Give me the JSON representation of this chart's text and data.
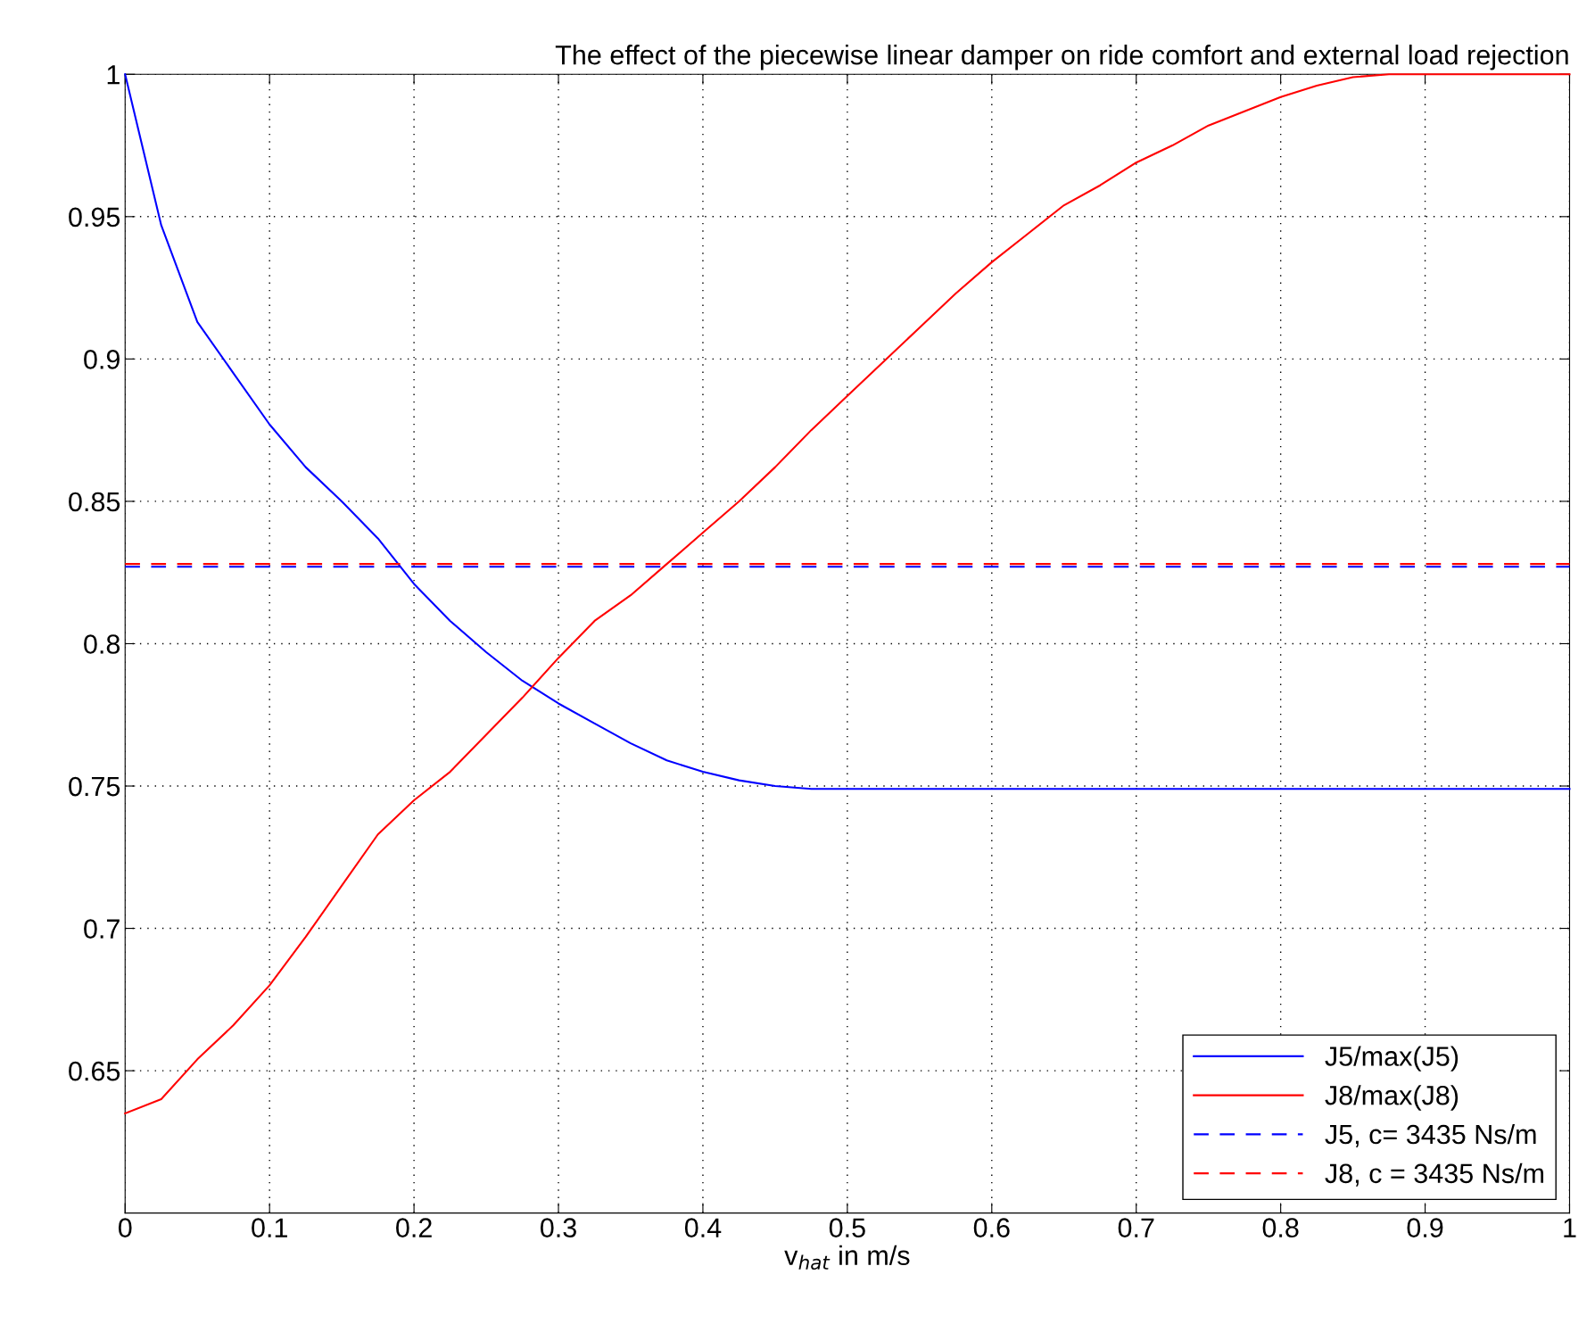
{
  "chart_data": {
    "type": "line",
    "title": "The effect of the piecewise linear damper on ride comfort and external load rejection",
    "xlabel": "v$_{hat}$ in m/s",
    "x": [
      0,
      0.025,
      0.05,
      0.075,
      0.1,
      0.125,
      0.15,
      0.175,
      0.2,
      0.225,
      0.25,
      0.275,
      0.3,
      0.325,
      0.35,
      0.375,
      0.4,
      0.425,
      0.45,
      0.475,
      0.5,
      0.525,
      0.55,
      0.575,
      0.6,
      0.625,
      0.65,
      0.675,
      0.7,
      0.725,
      0.75,
      0.775,
      0.8,
      0.825,
      0.85,
      0.875,
      0.9,
      0.925,
      0.95,
      0.975,
      1
    ],
    "series": [
      {
        "name": "J5/max(J5)",
        "color": "#0000ff",
        "line_style": "solid",
        "values": [
          1.0,
          0.947,
          0.913,
          0.895,
          0.877,
          0.862,
          0.85,
          0.837,
          0.821,
          0.808,
          0.797,
          0.787,
          0.779,
          0.772,
          0.765,
          0.759,
          0.755,
          0.752,
          0.75,
          0.749,
          0.749,
          0.749,
          0.749,
          0.749,
          0.749,
          0.749,
          0.749,
          0.749,
          0.749,
          0.749,
          0.749,
          0.749,
          0.749,
          0.749,
          0.749,
          0.749,
          0.749,
          0.749,
          0.749,
          0.749,
          0.749
        ]
      },
      {
        "name": "J8/max(J8)",
        "color": "#ff0000",
        "line_style": "solid",
        "values": [
          0.635,
          0.64,
          0.654,
          0.666,
          0.68,
          0.697,
          0.715,
          0.733,
          0.745,
          0.755,
          0.768,
          0.781,
          0.795,
          0.808,
          0.817,
          0.828,
          0.839,
          0.85,
          0.862,
          0.875,
          0.887,
          0.899,
          0.911,
          0.923,
          0.934,
          0.944,
          0.954,
          0.961,
          0.969,
          0.975,
          0.982,
          0.987,
          0.992,
          0.996,
          0.999,
          1.0,
          1.0,
          1.0,
          1.0,
          1.0,
          1.0
        ]
      },
      {
        "name": "J5, c= 3435 Ns/m",
        "color": "#0000ff",
        "line_style": "dashed",
        "values": [
          0.827,
          0.827,
          0.827,
          0.827,
          0.827,
          0.827,
          0.827,
          0.827,
          0.827,
          0.827,
          0.827,
          0.827,
          0.827,
          0.827,
          0.827,
          0.827,
          0.827,
          0.827,
          0.827,
          0.827,
          0.827,
          0.827,
          0.827,
          0.827,
          0.827,
          0.827,
          0.827,
          0.827,
          0.827,
          0.827,
          0.827,
          0.827,
          0.827,
          0.827,
          0.827,
          0.827,
          0.827,
          0.827,
          0.827,
          0.827,
          0.827
        ]
      },
      {
        "name": "J8, c = 3435 Ns/m",
        "color": "#ff0000",
        "line_style": "dashed",
        "values": [
          0.828,
          0.828,
          0.828,
          0.828,
          0.828,
          0.828,
          0.828,
          0.828,
          0.828,
          0.828,
          0.828,
          0.828,
          0.828,
          0.828,
          0.828,
          0.828,
          0.828,
          0.828,
          0.828,
          0.828,
          0.828,
          0.828,
          0.828,
          0.828,
          0.828,
          0.828,
          0.828,
          0.828,
          0.828,
          0.828,
          0.828,
          0.828,
          0.828,
          0.828,
          0.828,
          0.828,
          0.828,
          0.828,
          0.828,
          0.828,
          0.828
        ]
      }
    ],
    "xlim": [
      0,
      1
    ],
    "ylim": [
      0.6,
      1
    ],
    "xticks": [
      0,
      0.1,
      0.2,
      0.3,
      0.4,
      0.5,
      0.6,
      0.7,
      0.8,
      0.9,
      1
    ],
    "yticks": [
      0.65,
      0.7,
      0.75,
      0.8,
      0.85,
      0.9,
      0.95,
      1
    ],
    "grid": true,
    "legend": "bottom right"
  }
}
